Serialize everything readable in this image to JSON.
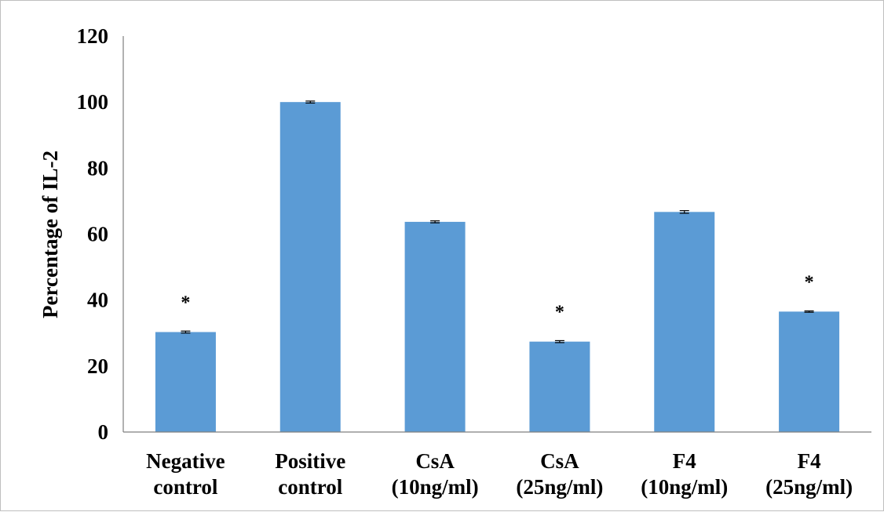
{
  "chart_data": {
    "type": "bar",
    "title": "",
    "xlabel": "",
    "ylabel": "Percentage of IL-2",
    "ylim": [
      0,
      120
    ],
    "yticks": [
      0,
      20,
      40,
      60,
      80,
      100,
      120
    ],
    "grid": false,
    "legend": "none",
    "categories": [
      [
        "Negative",
        "control"
      ],
      [
        "Positive",
        "control"
      ],
      [
        "CsA",
        "(10ng/ml)"
      ],
      [
        "CsA",
        "(25ng/ml)"
      ],
      [
        "F4",
        "(10ng/ml)"
      ],
      [
        "F4",
        "(25ng/ml)"
      ]
    ],
    "series": [
      {
        "values": [
          30.3,
          100,
          63.7,
          27.4,
          66.7,
          36.5
        ],
        "errors": [
          0.3,
          0.3,
          0.3,
          0.3,
          0.4,
          0.2
        ],
        "color": "#5b9bd5"
      }
    ],
    "annotations": [
      "*",
      "",
      "",
      "*",
      "",
      "*"
    ]
  }
}
